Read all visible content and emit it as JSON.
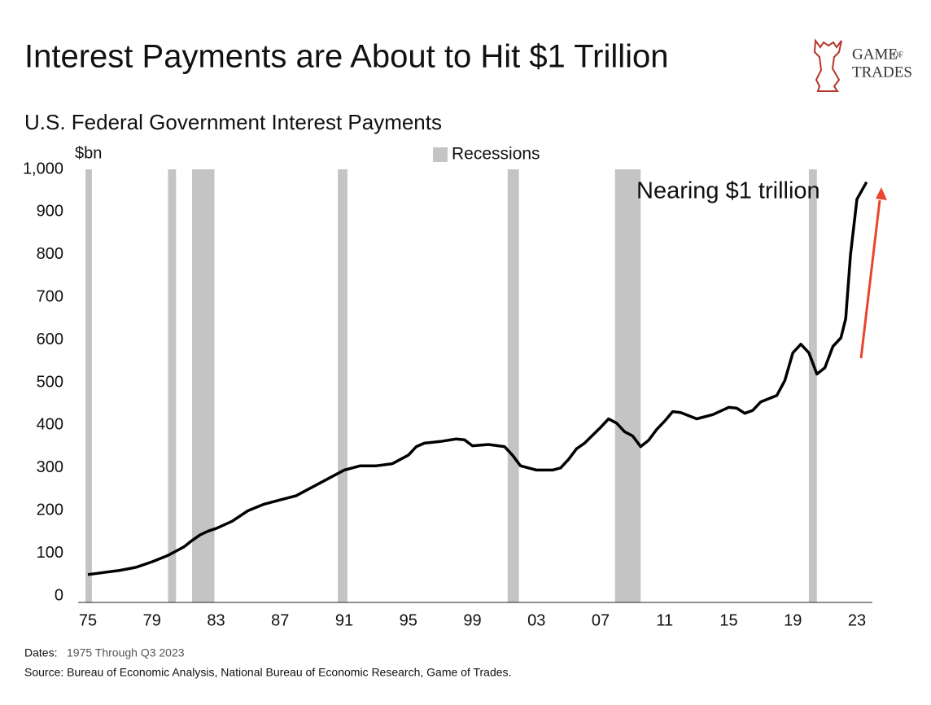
{
  "chart_data": {
    "type": "line",
    "title": "Interest Payments are About to Hit $1 Trillion",
    "subtitle": "U.S. Federal Government Interest Payments",
    "y_label": "$bn",
    "annotation": "Nearing $1 trillion",
    "logo": [
      "GAME",
      "OF",
      "TRADES"
    ],
    "dates_label": "Dates:",
    "dates": "1975 Through Q3 2023",
    "source": "Source: Bureau of Economic Analysis, National Bureau of Economic Research, Game of Trades.",
    "recession_label": "Recessions",
    "recession_color": "#c4c4c4",
    "recessions": [
      [
        1974.85,
        1975.25
      ],
      [
        1980.0,
        1980.5
      ],
      [
        1981.5,
        1982.9
      ],
      [
        1990.6,
        1991.2
      ],
      [
        2001.2,
        2001.9
      ],
      [
        2007.9,
        2009.5
      ],
      [
        2020.0,
        2020.5
      ]
    ],
    "color": "#000000",
    "x": [
      1975,
      1976,
      1977,
      1978,
      1979,
      1980,
      1980.5,
      1981,
      1981.5,
      1982,
      1982.5,
      1983,
      1984,
      1985,
      1986,
      1987,
      1988,
      1989,
      1990,
      1991,
      1992,
      1993,
      1994,
      1995,
      1995.5,
      1996,
      1997,
      1998,
      1998.5,
      1999,
      2000,
      2001,
      2001.5,
      2002,
      2003,
      2004,
      2004.5,
      2005,
      2005.5,
      2006,
      2007,
      2007.5,
      2008,
      2008.5,
      2009,
      2009.5,
      2010,
      2010.5,
      2011,
      2011.5,
      2012,
      2013,
      2014,
      2015,
      2015.5,
      2016,
      2016.5,
      2017,
      2018,
      2018.5,
      2019,
      2019.5,
      2020,
      2020.5,
      2021,
      2021.5,
      2022,
      2022.3,
      2022.6,
      2023,
      2023.6
    ],
    "values": [
      50,
      55,
      60,
      67,
      80,
      95,
      105,
      115,
      130,
      143,
      152,
      158,
      175,
      200,
      215,
      225,
      235,
      255,
      275,
      295,
      305,
      305,
      310,
      330,
      350,
      358,
      362,
      368,
      366,
      352,
      355,
      350,
      330,
      305,
      295,
      295,
      300,
      320,
      345,
      358,
      395,
      415,
      405,
      385,
      375,
      350,
      365,
      390,
      410,
      432,
      430,
      415,
      425,
      442,
      440,
      428,
      435,
      455,
      470,
      505,
      570,
      590,
      570,
      520,
      535,
      585,
      605,
      650,
      800,
      930,
      970
    ],
    "xlim": [
      1974.8,
      2024.5
    ],
    "ylim": [
      0,
      1000
    ],
    "xticks": [
      {
        "value": 1975,
        "label": "75"
      },
      {
        "value": 1979,
        "label": "79"
      },
      {
        "value": 1983,
        "label": "83"
      },
      {
        "value": 1987,
        "label": "87"
      },
      {
        "value": 1991,
        "label": "91"
      },
      {
        "value": 1995,
        "label": "95"
      },
      {
        "value": 1999,
        "label": "99"
      },
      {
        "value": 2003,
        "label": "03"
      },
      {
        "value": 2007,
        "label": "07"
      },
      {
        "value": 2011,
        "label": "11"
      },
      {
        "value": 2015,
        "label": "15"
      },
      {
        "value": 2019,
        "label": "19"
      },
      {
        "value": 2023,
        "label": "23"
      }
    ],
    "yticks": [
      0,
      100,
      200,
      300,
      400,
      500,
      600,
      700,
      800,
      900,
      {
        "value": 1000,
        "label": "1,000"
      }
    ]
  }
}
